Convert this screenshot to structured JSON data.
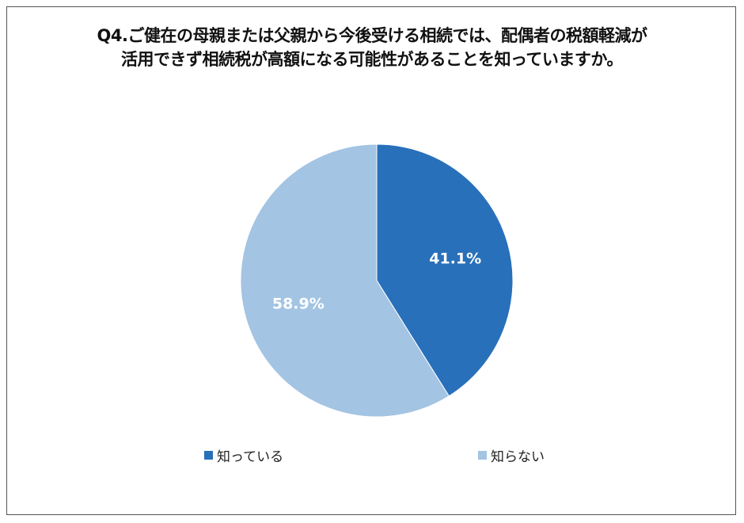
{
  "chart_data": {
    "type": "pie",
    "title_lines": [
      "Q4.ご健在の母親または父親から今後受ける相続では、配偶者の税額軽減が",
      "活用できず相続税が高額になる可能性があることを知っていますか。"
    ],
    "slices": [
      {
        "label": "知っている",
        "value": 41.1,
        "display": "41.1%",
        "color": "#2970BA"
      },
      {
        "label": "知らない",
        "value": 58.9,
        "display": "58.9%",
        "color": "#A3C4E3"
      }
    ],
    "start_angle_deg": 0,
    "direction": "clockwise",
    "legend_position": "bottom"
  }
}
